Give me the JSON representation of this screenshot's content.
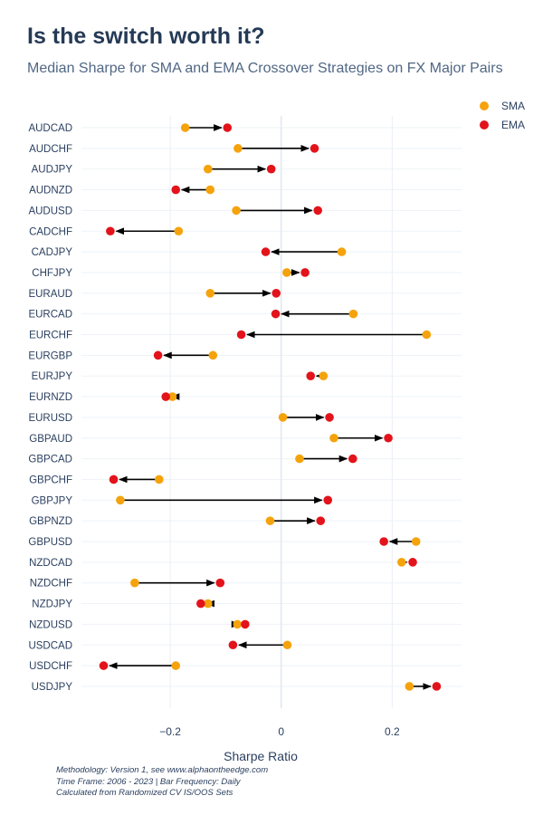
{
  "header": {
    "title": "Is the switch worth it?",
    "subtitle": "Median Sharpe for SMA and EMA Crossover Strategies on FX Major Pairs"
  },
  "legend": {
    "items": [
      {
        "label": "SMA",
        "color": "#f5a30c"
      },
      {
        "label": "EMA",
        "color": "#e3131b"
      }
    ]
  },
  "footer": {
    "line1": "Methodology: Version 1, see www.alphaontheedge.com",
    "line2": "Time Frame: 2006 - 2023 | Bar Frequency: Daily",
    "line3": "Calculated from Randomized CV IS/OOS Sets"
  },
  "chart_data": {
    "type": "dumbbell",
    "xlabel": "Sharpe Ratio",
    "xlim": [
      -0.36,
      0.325
    ],
    "xticks": [
      -0.2,
      0,
      0.2
    ],
    "xtick_labels": [
      "−0.2",
      "0",
      "0.2"
    ],
    "categories": [
      "AUDCAD",
      "AUDCHF",
      "AUDJPY",
      "AUDNZD",
      "AUDUSD",
      "CADCHF",
      "CADJPY",
      "CHFJPY",
      "EURAUD",
      "EURCAD",
      "EURCHF",
      "EURGBP",
      "EURJPY",
      "EURNZD",
      "EURUSD",
      "GBPAUD",
      "GBPCAD",
      "GBPCHF",
      "GBPJPY",
      "GBPNZD",
      "GBPUSD",
      "NZDCAD",
      "NZDCHF",
      "NZDJPY",
      "NZDUSD",
      "USDCAD",
      "USDCHF",
      "USDJPY"
    ],
    "series": [
      {
        "name": "SMA",
        "color": "#f5a30c",
        "values": [
          -0.173,
          -0.078,
          -0.132,
          -0.128,
          -0.081,
          -0.185,
          0.109,
          0.01,
          -0.128,
          0.13,
          0.262,
          -0.123,
          0.076,
          -0.196,
          0.003,
          0.095,
          0.033,
          -0.22,
          -0.29,
          -0.02,
          0.243,
          0.217,
          -0.264,
          -0.132,
          -0.079,
          0.011,
          -0.19,
          0.231
        ]
      },
      {
        "name": "EMA",
        "color": "#e3131b",
        "values": [
          -0.097,
          0.06,
          -0.018,
          -0.19,
          0.066,
          -0.308,
          -0.028,
          0.043,
          -0.009,
          -0.01,
          -0.072,
          -0.222,
          0.053,
          -0.208,
          0.087,
          0.193,
          0.129,
          -0.302,
          0.084,
          0.071,
          0.185,
          0.237,
          -0.11,
          -0.145,
          -0.065,
          -0.087,
          -0.32,
          0.28
        ]
      }
    ]
  }
}
